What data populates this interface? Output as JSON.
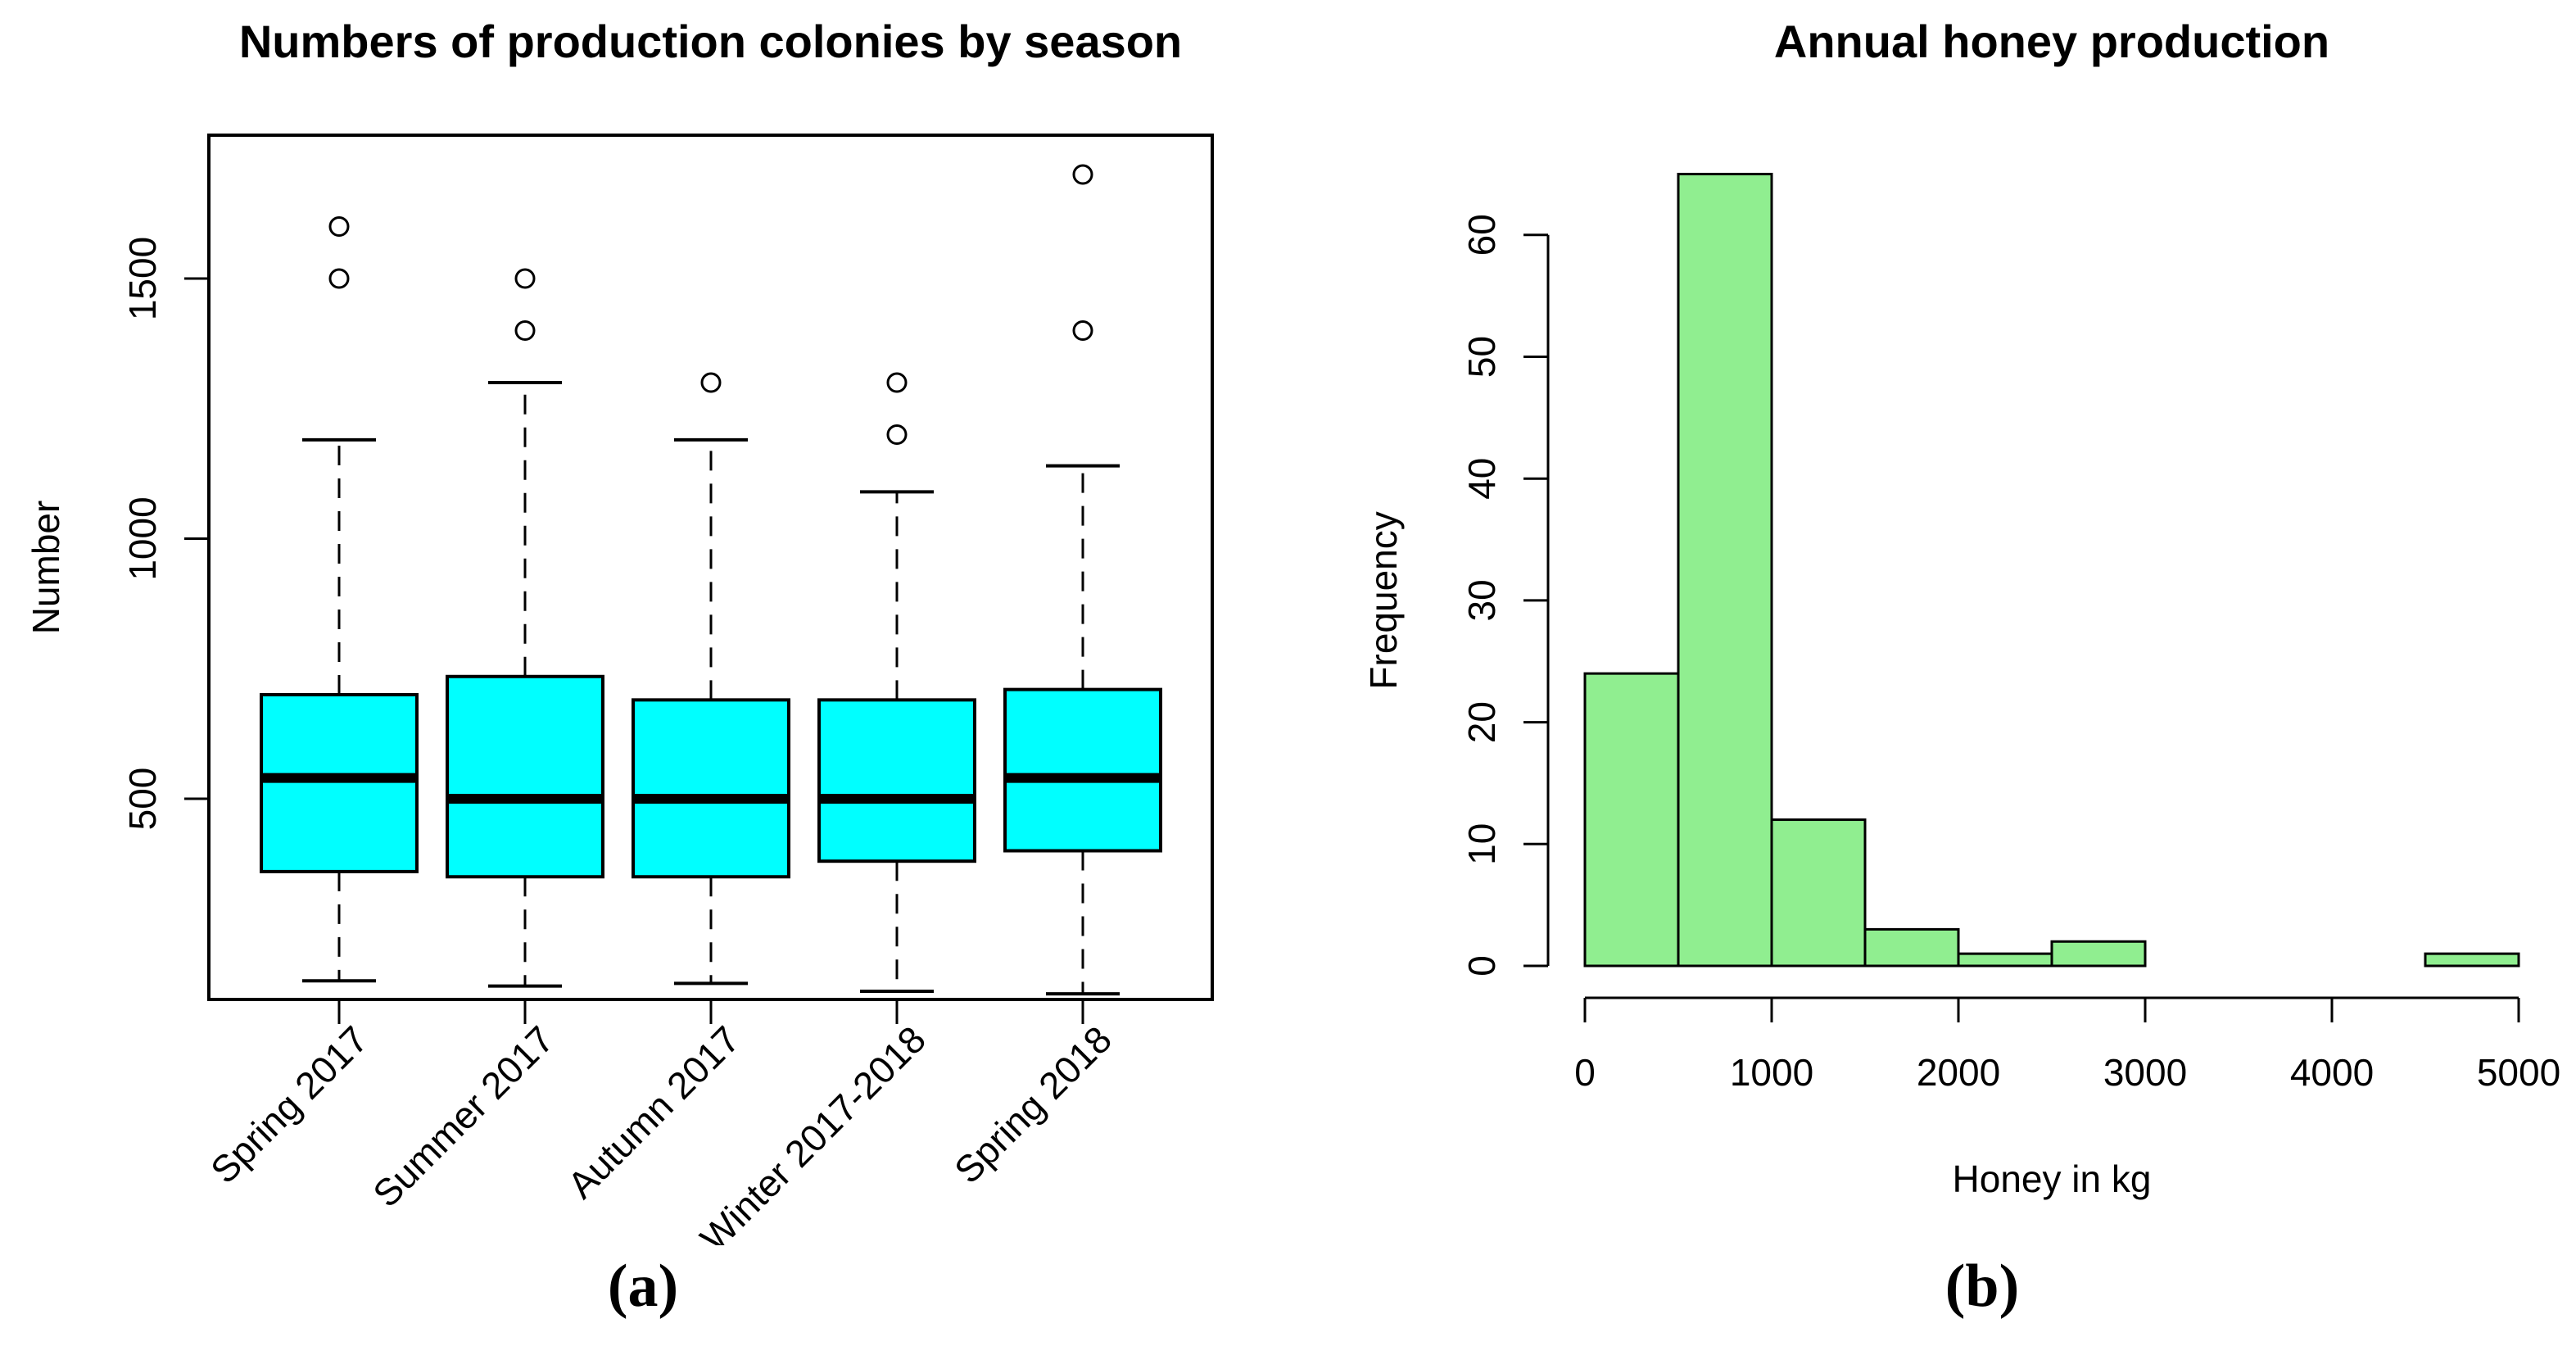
{
  "figure": {
    "caption_a": "(a)",
    "caption_b": "(b)"
  },
  "colors": {
    "background": "#ffffff",
    "stroke": "#000000",
    "boxplot_fill": "#00ffff",
    "histogram_fill": "#90ee90"
  },
  "chart_data": [
    {
      "id": "colonies-boxplot",
      "type": "boxplot",
      "title": "Numbers of production colonies by season",
      "ylabel": "Number",
      "yticks": [
        500,
        1000,
        1500
      ],
      "ylim": [
        110,
        1780
      ],
      "grid": false,
      "categories": [
        "Spring 2017",
        "Summer 2017",
        "Autumn 2017",
        "Winter 2017-2018",
        "Spring 2018"
      ],
      "boxes": [
        {
          "category": "Spring 2017",
          "min": 150,
          "q1": 360,
          "median": 540,
          "q3": 700,
          "max": 1190,
          "outliers": [
            1500,
            1600
          ]
        },
        {
          "category": "Summer 2017",
          "min": 140,
          "q1": 350,
          "median": 500,
          "q3": 735,
          "max": 1300,
          "outliers": [
            1400,
            1500
          ]
        },
        {
          "category": "Autumn 2017",
          "min": 145,
          "q1": 350,
          "median": 500,
          "q3": 690,
          "max": 1190,
          "outliers": [
            1300
          ]
        },
        {
          "category": "Winter 2017-2018",
          "min": 130,
          "q1": 380,
          "median": 500,
          "q3": 690,
          "max": 1090,
          "outliers": [
            1200,
            1300
          ]
        },
        {
          "category": "Spring 2018",
          "min": 125,
          "q1": 400,
          "median": 540,
          "q3": 710,
          "max": 1140,
          "outliers": [
            1400,
            1700
          ]
        }
      ]
    },
    {
      "id": "honey-histogram",
      "type": "histogram",
      "title": "Annual honey production",
      "xlabel": "Honey in kg",
      "ylabel": "Frequency",
      "bin_edges": [
        0,
        500,
        1000,
        1500,
        2000,
        2500,
        3000,
        3500,
        4000,
        4500,
        5000
      ],
      "counts": [
        24,
        65,
        12,
        3,
        1,
        2,
        0,
        0,
        0,
        1
      ],
      "xticks": [
        0,
        1000,
        2000,
        3000,
        4000,
        5000
      ],
      "yticks": [
        0,
        10,
        20,
        30,
        40,
        50,
        60
      ],
      "ylim": [
        0,
        65
      ],
      "grid": false,
      "legend": "none"
    }
  ]
}
